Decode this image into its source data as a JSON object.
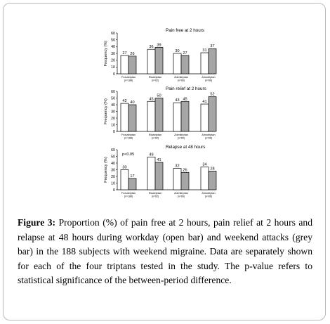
{
  "chart_data": [
    {
      "type": "bar",
      "title": "Pain free at 2 hours",
      "ylabel": "Frequency (%)",
      "ylim": [
        0,
        60
      ],
      "yticks": [
        "0",
        "10",
        "20",
        "30",
        "40",
        "50",
        "60"
      ],
      "grid": false,
      "categories": [
        {
          "name": "Frovatriptan",
          "n": "(n=188)"
        },
        {
          "name": "Rizatriptan",
          "n": "(n=62)"
        },
        {
          "name": "Zolmitriptan",
          "n": "(n=60)"
        },
        {
          "name": "Almotriptan",
          "n": "(n=66)"
        }
      ],
      "series": [
        {
          "style": "open",
          "values": [
            27,
            36,
            30,
            31
          ],
          "labels": [
            "27",
            "36",
            "30",
            "31"
          ]
        },
        {
          "style": "grey",
          "values": [
            26,
            39,
            27,
            37
          ],
          "labels": [
            "26",
            "39",
            "27",
            "37"
          ]
        }
      ],
      "annotation": ""
    },
    {
      "type": "bar",
      "title": "Pain relief at 2 hours",
      "ylabel": "Frequency (%)",
      "ylim": [
        0,
        60
      ],
      "yticks": [
        "0",
        "10",
        "20",
        "30",
        "40",
        "50",
        "60"
      ],
      "grid": false,
      "categories": [
        {
          "name": "Frovatriptan",
          "n": "(n=188)"
        },
        {
          "name": "Rizatriptan",
          "n": "(n=62)"
        },
        {
          "name": "Zolmitriptan",
          "n": "(n=60)"
        },
        {
          "name": "Almotriptan",
          "n": "(n=66)"
        }
      ],
      "series": [
        {
          "style": "open",
          "values": [
            42,
            45,
            43,
            41
          ],
          "labels": [
            "42",
            "45",
            "43",
            "41"
          ]
        },
        {
          "style": "grey",
          "values": [
            40,
            50,
            45,
            52
          ],
          "labels": [
            "40",
            "50",
            "45",
            "52"
          ]
        }
      ],
      "annotation": ""
    },
    {
      "type": "bar",
      "title": "Relapse at 48 hours",
      "ylabel": "Frequency (%)",
      "ylim": [
        0,
        60
      ],
      "yticks": [
        "0",
        "10",
        "20",
        "30",
        "40",
        "50",
        "60"
      ],
      "grid": false,
      "categories": [
        {
          "name": "Frovatriptan",
          "n": "(n=188)"
        },
        {
          "name": "Rizatriptan",
          "n": "(n=62)"
        },
        {
          "name": "Zolmitriptan",
          "n": "(n=60)"
        },
        {
          "name": "Almotriptan",
          "n": "(n=66)"
        }
      ],
      "series": [
        {
          "style": "open",
          "values": [
            30,
            49,
            32,
            34
          ],
          "labels": [
            "30",
            "49",
            "32",
            "34"
          ]
        },
        {
          "style": "grey",
          "values": [
            17,
            41,
            26,
            28
          ],
          "labels": [
            "17",
            "41",
            "26",
            "28"
          ]
        }
      ],
      "annotation": "p<0.05"
    }
  ],
  "colors": {
    "open_bar_fill": "#ffffff",
    "grey_bar_fill": "#a6a6a6",
    "bar_stroke": "#000000",
    "frame_border": "#b9b9b9"
  },
  "caption": {
    "label": "Figure 3:",
    "text": "Proportion (%) of pain free at 2 hours, pain relief at 2 hours and relapse at 48 hours during workday (open bar) and weekend attacks (grey bar) in the 188 subjects with weekend migraine. Data are separately shown for each of the four triptans tested in the study. The p-value refers to statistical significance of the between-period difference."
  }
}
